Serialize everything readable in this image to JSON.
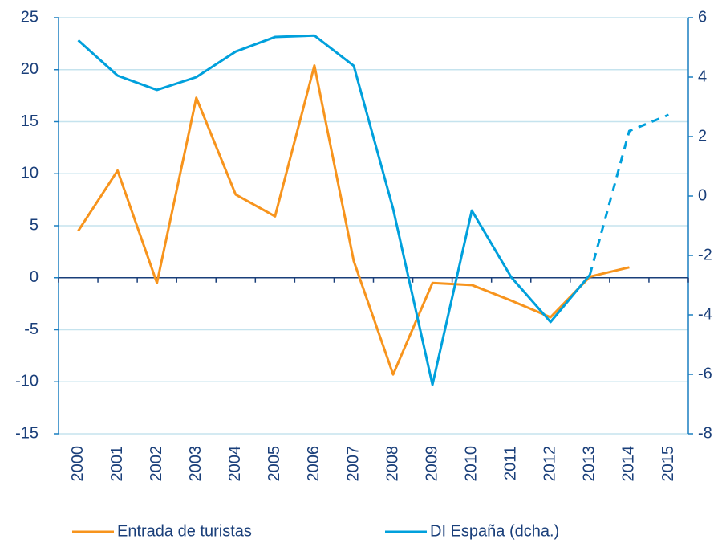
{
  "chart_data": {
    "type": "line",
    "categories": [
      "2000",
      "2001",
      "2002",
      "2003",
      "2004",
      "2005",
      "2006",
      "2007",
      "2008",
      "2009",
      "2010",
      "2011",
      "2012",
      "2013",
      "2014",
      "2015"
    ],
    "series": [
      {
        "name": "Entrada de turistas",
        "color": "#f7941d",
        "values": [
          4.5,
          10.3,
          -0.5,
          17.3,
          8.0,
          5.9,
          20.4,
          1.6,
          -9.3,
          -0.5,
          -0.7,
          -2.2,
          -3.8,
          0.1,
          1.0,
          null
        ]
      },
      {
        "name": "DI España (dcha.)",
        "color": "#00a0dc",
        "axis": "y2",
        "dash_from": "2013",
        "values": [
          5.24,
          4.05,
          3.57,
          4.0,
          4.86,
          5.35,
          5.4,
          4.38,
          -0.43,
          -6.35,
          -0.49,
          -2.73,
          -4.24,
          -2.65,
          2.19,
          2.73
        ]
      }
    ],
    "ylim": [
      -15,
      25
    ],
    "yticks": [
      -15,
      -10,
      -5,
      0,
      5,
      10,
      15,
      20,
      25
    ],
    "y2lim": [
      -8,
      6
    ],
    "y2ticks": [
      -8,
      -6,
      -4,
      -2,
      0,
      2,
      4,
      6
    ],
    "grid": true,
    "grid_color": "#c5e3ee",
    "axis_color": "#1a7fc1",
    "legend": "bottom"
  }
}
